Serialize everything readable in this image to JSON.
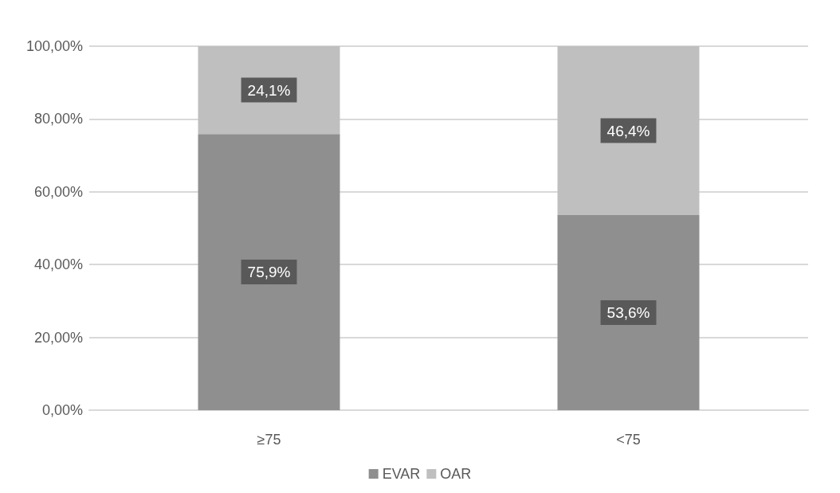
{
  "chart_data": {
    "type": "bar",
    "stacked": true,
    "categories": [
      "≥75",
      "<75"
    ],
    "series": [
      {
        "name": "EVAR",
        "color": "#8f8f8f",
        "values": [
          75.9,
          53.6
        ],
        "value_labels": [
          "75,9%",
          "53,6%"
        ]
      },
      {
        "name": "OAR",
        "color": "#bfbfbf",
        "values": [
          24.1,
          46.4
        ],
        "value_labels": [
          "24,1%",
          "46,4%"
        ]
      }
    ],
    "ylim": [
      0,
      100
    ],
    "yticks": [
      {
        "value": 0,
        "label": "0,00%"
      },
      {
        "value": 20,
        "label": "20,00%"
      },
      {
        "value": 40,
        "label": "40,00%"
      },
      {
        "value": 60,
        "label": "60,00%"
      },
      {
        "value": 80,
        "label": "80,00%"
      },
      {
        "value": 100,
        "label": "100,00%"
      }
    ],
    "grid": true,
    "legend": "bottom"
  }
}
